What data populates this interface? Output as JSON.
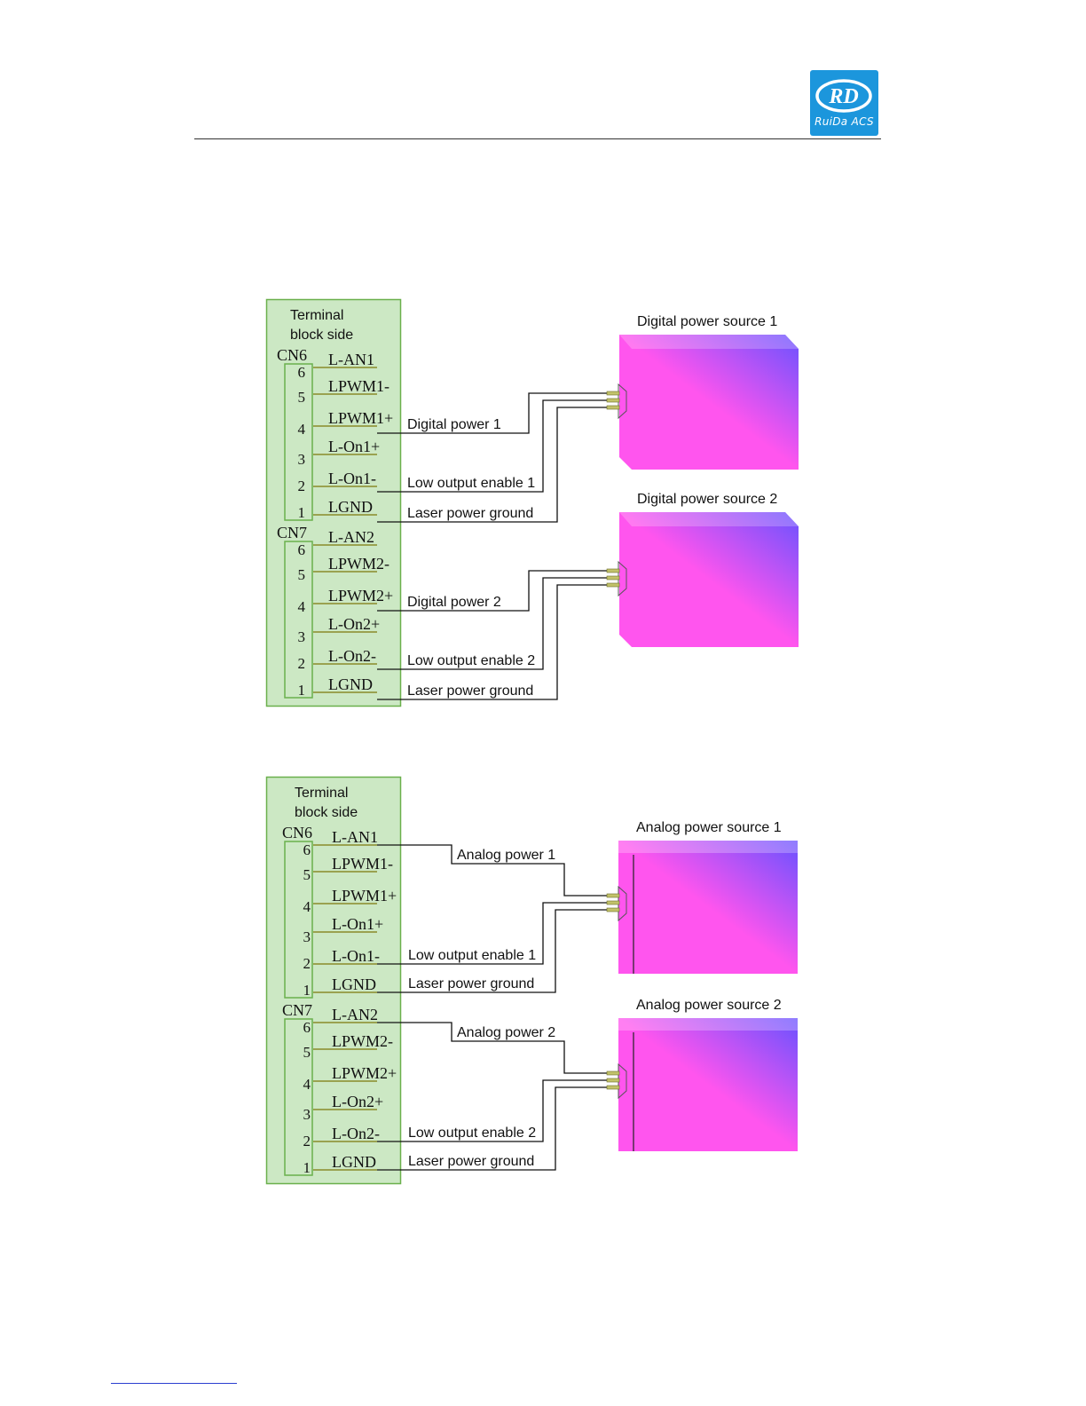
{
  "header": {
    "logo_initials": "RD",
    "logo_text": "RuiDa ACS",
    "logo_color": "#1c96dc"
  },
  "colors": {
    "terminal_block_fill": "#cce8c4",
    "terminal_block_border": "#6ab04c",
    "pin_line": "#8a8a2a",
    "box_pink": "#ff55ee",
    "box_violet": "#6a52ff"
  },
  "diagrams": [
    {
      "block_title": [
        "Terminal",
        "block side"
      ],
      "connectors": [
        {
          "name": "CN6",
          "pins": [
            {
              "num": "6",
              "label": "L-AN1"
            },
            {
              "num": "5",
              "label": "LPWM1-"
            },
            {
              "num": "4",
              "label": "LPWM1+"
            },
            {
              "num": "3",
              "label": "L-On1+"
            },
            {
              "num": "2",
              "label": "L-On1-"
            },
            {
              "num": "1",
              "label": "LGND"
            }
          ],
          "wires": [
            "Digital power 1",
            "Low output enable 1",
            "Laser power ground"
          ],
          "source": "Digital power source 1"
        },
        {
          "name": "CN7",
          "pins": [
            {
              "num": "6",
              "label": "L-AN2"
            },
            {
              "num": "5",
              "label": "LPWM2-"
            },
            {
              "num": "4",
              "label": "LPWM2+"
            },
            {
              "num": "3",
              "label": "L-On2+"
            },
            {
              "num": "2",
              "label": "L-On2-"
            },
            {
              "num": "1",
              "label": "LGND"
            }
          ],
          "wires": [
            "Digital power 2",
            "Low output enable 2",
            "Laser power ground"
          ],
          "source": "Digital power source 2"
        }
      ]
    },
    {
      "block_title": [
        "Terminal",
        "block side"
      ],
      "connectors": [
        {
          "name": "CN6",
          "pins": [
            {
              "num": "6",
              "label": "L-AN1"
            },
            {
              "num": "5",
              "label": "LPWM1-"
            },
            {
              "num": "4",
              "label": "LPWM1+"
            },
            {
              "num": "3",
              "label": "L-On1+"
            },
            {
              "num": "2",
              "label": "L-On1-"
            },
            {
              "num": "1",
              "label": "LGND"
            }
          ],
          "wires": [
            "Analog power 1",
            "Low output enable 1",
            "Laser power ground"
          ],
          "source": "Analog power source 1"
        },
        {
          "name": "CN7",
          "pins": [
            {
              "num": "6",
              "label": "L-AN2"
            },
            {
              "num": "5",
              "label": "LPWM2-"
            },
            {
              "num": "4",
              "label": "LPWM2+"
            },
            {
              "num": "3",
              "label": "L-On2+"
            },
            {
              "num": "2",
              "label": "L-On2-"
            },
            {
              "num": "1",
              "label": "LGND"
            }
          ],
          "wires": [
            "Analog power 2",
            "Low output enable 2",
            "Laser power ground"
          ],
          "source": "Analog power source 2"
        }
      ]
    }
  ]
}
